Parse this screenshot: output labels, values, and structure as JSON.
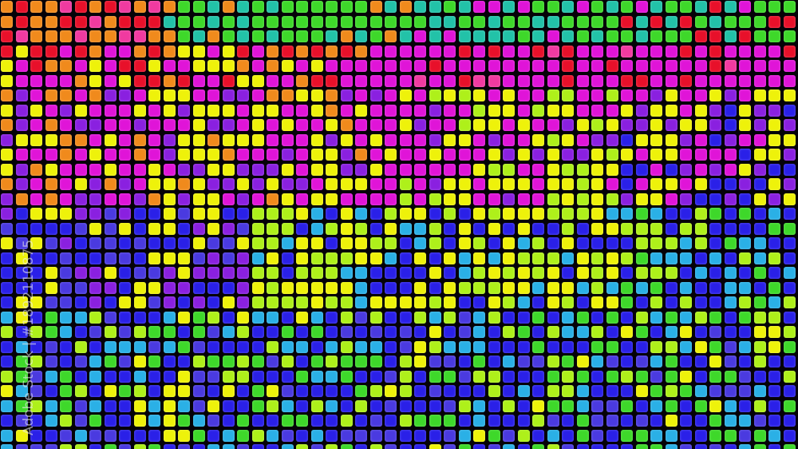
{
  "image": {
    "subject": "colorful mosaic of rounded square LED-like tiles",
    "palette": {
      "red": "#e8102a",
      "orange": "#f08a1c",
      "yellow": "#eef20a",
      "lime": "#aef01a",
      "green": "#3ed82a",
      "teal": "#22c2a8",
      "cyan": "#2ab0e6",
      "blue": "#2a20e8",
      "indigo": "#4a3ae0",
      "purple": "#8a20e0",
      "magenta": "#e014d8",
      "pink": "#f03aa0"
    }
  },
  "watermark": {
    "text": "Adobe Stock | #1892110875"
  }
}
